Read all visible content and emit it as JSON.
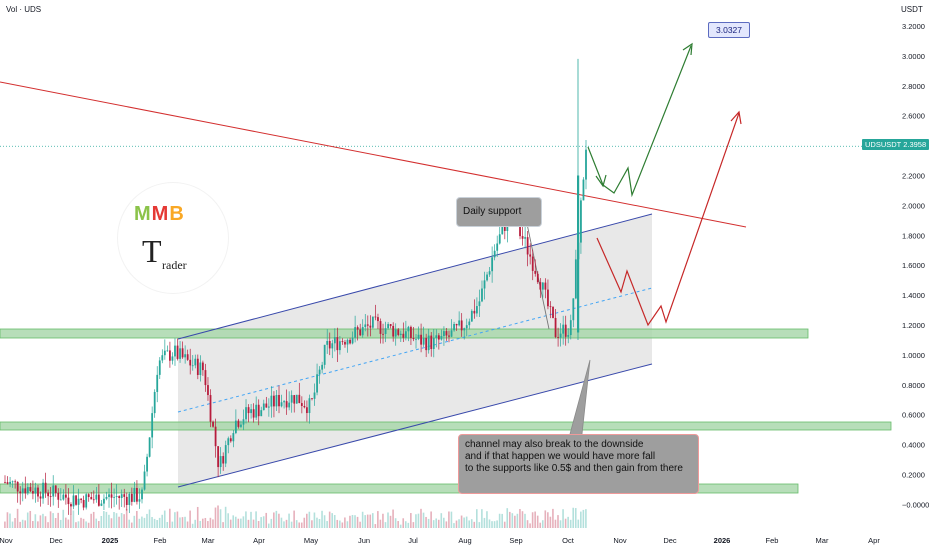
{
  "header": {
    "legend_title": "Vol · UDS",
    "currency": "USDT"
  },
  "annotations": {
    "daily_support": "Daily support",
    "channel_note": "channel may also break to the downside\nand if that happen we would have more fall\nto the supports like 0.5$ and then gain from there",
    "target_label": "3.0327",
    "price_tag": "UDSUSDT  2.3958"
  },
  "colors": {
    "up_candle": "#26a69a",
    "down_candle": "#b71c3c",
    "support_zone": "#a5d6a7",
    "channel_line": "#3949ab",
    "trend_line": "#d32f2f",
    "bull_path": "#2e7d32",
    "bear_path": "#c62828"
  },
  "chart_data": {
    "type": "line",
    "title": "",
    "xlabel": "",
    "ylabel": "",
    "ylim": [
      -0.1,
      3.25
    ],
    "y_ticks": [
      "3.2000",
      "3.0000",
      "2.8000",
      "2.6000",
      "2.4000",
      "2.2000",
      "2.0000",
      "1.8000",
      "1.6000",
      "1.4000",
      "1.2000",
      "1.0000",
      "0.8000",
      "0.6000",
      "0.4000",
      "0.2000",
      "−0.0000"
    ],
    "y_tick_values": [
      3.2,
      3.0,
      2.8,
      2.6,
      2.4,
      2.2,
      2.0,
      1.8,
      1.6,
      1.4,
      1.2,
      1.0,
      0.8,
      0.6,
      0.4,
      0.2,
      0.0
    ],
    "x_ticks": [
      "Nov",
      "Dec",
      "2025",
      "Feb",
      "Mar",
      "Apr",
      "May",
      "Jun",
      "Jul",
      "Aug",
      "Sep",
      "Oct",
      "Nov",
      "Dec",
      "2026",
      "Feb",
      "Mar",
      "Apr"
    ],
    "grid": false,
    "series": [
      {
        "values": [
          0.15,
          0.12,
          0.1,
          0.08,
          0.05,
          0.03,
          0.04,
          0.05,
          0.05,
          0.06,
          0.95,
          1.02,
          0.95,
          0.9,
          0.25,
          0.55,
          0.62,
          0.65,
          0.7,
          0.72,
          0.65,
          1.05,
          1.1,
          1.15,
          1.2,
          1.18,
          1.15,
          1.1,
          1.08,
          1.12,
          1.2,
          1.35,
          1.7,
          1.95,
          1.75,
          1.5,
          1.15,
          1.18,
          2.4
        ]
      }
    ],
    "current_price": 2.3958,
    "target": 3.0327
  }
}
